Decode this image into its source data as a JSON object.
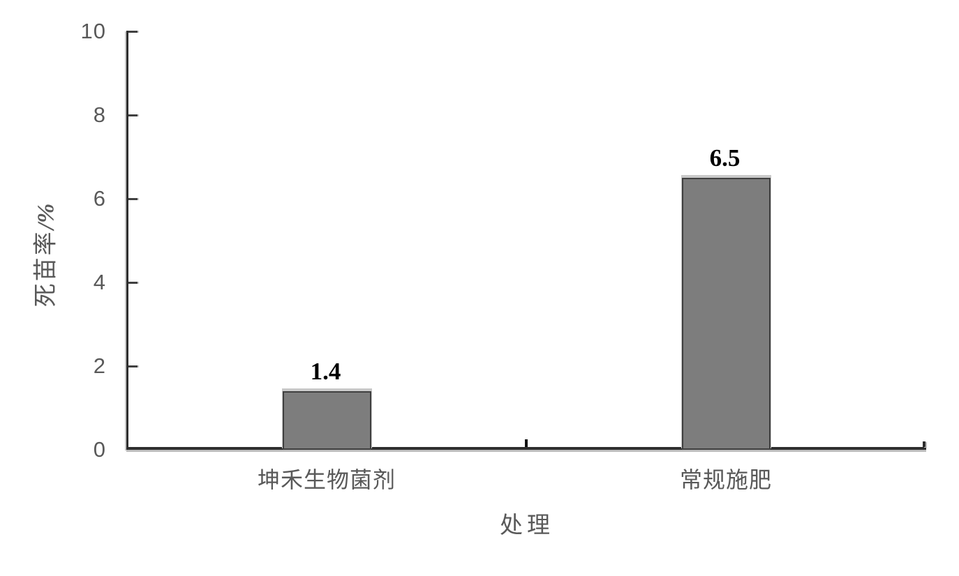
{
  "chart_data": {
    "type": "bar",
    "title": "",
    "categories": [
      "坤禾生物菌剂",
      "常规施肥"
    ],
    "values": [
      1.4,
      6.5
    ],
    "value_labels": [
      "1.4",
      "6.5"
    ],
    "xlabel": "处理",
    "ylabel": "死苗率/%",
    "ylabel_main": "死苗率",
    "ylabel_unit": "/%",
    "ytick_labels": [
      "10",
      "8",
      "6",
      "4",
      "2",
      "0"
    ],
    "ylim": [
      0,
      10
    ],
    "ytick_interval": 2,
    "grid": false,
    "legend": "none",
    "colors": {
      "bar_fill": "#7d7d7d",
      "bar_border": "#3f3f3f",
      "axis": "#2e2e2e",
      "tick": "#404040",
      "text": "#595959",
      "value_text": "#000000",
      "background": "#ffffff"
    }
  }
}
